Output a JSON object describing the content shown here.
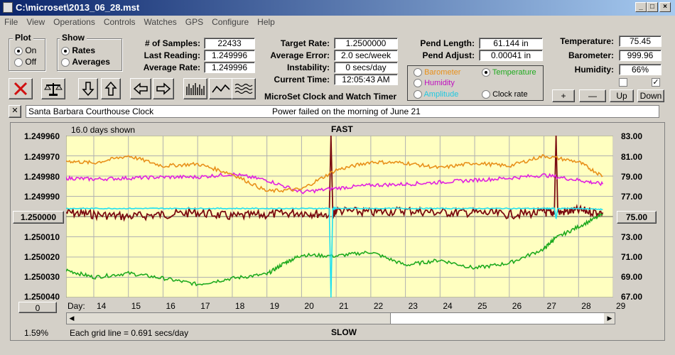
{
  "window": {
    "title": "C:\\microset\\2013_06_28.mst"
  },
  "menu": [
    "File",
    "View",
    "Operations",
    "Controls",
    "Watches",
    "GPS",
    "Configure",
    "Help"
  ],
  "plot_group": {
    "title": "Plot",
    "on": "On",
    "off": "Off"
  },
  "show_group": {
    "title": "Show",
    "rates": "Rates",
    "averages": "Averages"
  },
  "stats": {
    "samples_label": "# of Samples:",
    "samples": "22433",
    "last_label": "Last Reading:",
    "last": "1.249996",
    "avg_label": "Average Rate:",
    "avg": "1.249996",
    "target_label": "Target Rate:",
    "target": "1.2500000",
    "avgerr_label": "Average Error:",
    "avgerr": "2.0 sec/week",
    "instab_label": "Instability:",
    "instab": "0 secs/day",
    "time_label": "Current Time:",
    "time": "12:05:43 AM",
    "pendlen_label": "Pend Length:",
    "pendlen": "61.144 in",
    "pendadj_label": "Pend Adjust:",
    "pendadj": "0.00041 in",
    "temp_label": "Temperature:",
    "temp": "75.45",
    "baro_label": "Barometer:",
    "baro": "999.96",
    "hum_label": "Humidity:",
    "hum": "66%"
  },
  "series_selector": {
    "barometer": "Barometer",
    "temperature": "Temperature",
    "humidity": "Humidity",
    "amplitude": "Amplitude",
    "clockrate": "Clock rate"
  },
  "app_heading": "MicroSet Clock and Watch Timer",
  "scale_buttons": {
    "plus": "+",
    "minus": "—",
    "up": "Up",
    "down": "Down"
  },
  "notes": {
    "clock_name": "Santa Barbara Courthouse Clock",
    "message": "Power failed on the morning of June 21",
    "close": "✕"
  },
  "chart_labels": {
    "days_shown": "16.0 days shown",
    "fast": "FAST",
    "slow": "SLOW",
    "grid_note": "Each grid line = 0.691 secs/day",
    "percent": "1.59%",
    "day_label": "Day:",
    "left_btn": "1.250000",
    "right_btn": "75.00",
    "bottom_btn": "0"
  },
  "colors": {
    "plot_bg": "#ffffc0",
    "clock_rate": "#7a0a10",
    "temperature": "#1faa1f",
    "humidity": "#e020e0",
    "barometer": "#e8901a",
    "amplitude": "#20e0f0"
  },
  "chart_data": {
    "type": "line",
    "x_axis": {
      "label": "Day:",
      "ticks": [
        "14",
        "15",
        "16",
        "17",
        "18",
        "19",
        "20",
        "21",
        "22",
        "23",
        "24",
        "25",
        "26",
        "27",
        "28",
        "29"
      ],
      "range": [
        13.2,
        29
      ]
    },
    "y_left": {
      "ticks": [
        "1.249960",
        "1.249970",
        "1.249980",
        "1.249990",
        "1.250000",
        "1.250010",
        "1.250020",
        "1.250030",
        "1.250040"
      ],
      "range": [
        1.24996,
        1.25004
      ],
      "direction": "inverted"
    },
    "y_right": {
      "ticks": [
        "83.00",
        "81.00",
        "79.00",
        "77.00",
        "75.00",
        "73.00",
        "71.00",
        "69.00",
        "67.00"
      ],
      "range": [
        67,
        83
      ]
    },
    "grid": true,
    "series": [
      {
        "name": "Clock rate",
        "axis": "left",
        "color": "#7a0a10",
        "x": [
          13.2,
          14,
          15,
          16,
          17,
          18,
          19,
          20,
          20.8,
          20.85,
          20.9,
          21,
          22,
          23,
          24,
          25,
          26,
          27,
          27.3,
          27.35,
          27.4,
          28,
          28.7
        ],
        "y": [
          1.249998,
          1.249999,
          1.25,
          1.249999,
          1.249998,
          1.25,
          1.249999,
          1.249998,
          1.249999,
          1.24996,
          1.249999,
          1.249997,
          1.249998,
          1.249997,
          1.249998,
          1.249998,
          1.249999,
          1.249998,
          1.249998,
          1.24996,
          1.249998,
          1.249997,
          1.249998
        ]
      },
      {
        "name": "Temperature",
        "axis": "right",
        "color": "#1faa1f",
        "x": [
          13.2,
          14,
          15,
          16,
          17,
          18,
          19,
          19.5,
          20,
          21,
          22,
          23,
          24,
          25,
          26,
          27,
          27.3,
          28,
          28.7
        ],
        "y": [
          69.7,
          69.0,
          69.4,
          68.9,
          68.3,
          68.9,
          69.3,
          70.4,
          71.2,
          71.1,
          71.5,
          70.2,
          70.7,
          69.9,
          70.4,
          71.8,
          72.8,
          74.0,
          75.2
        ]
      },
      {
        "name": "Humidity",
        "axis": "right",
        "color": "#e020e0",
        "x": [
          13.2,
          14,
          15,
          16,
          17,
          18,
          19,
          20,
          21,
          22,
          23,
          24,
          25,
          26,
          27,
          28,
          28.7
        ],
        "y": [
          78.8,
          78.7,
          78.8,
          78.9,
          78.9,
          79.2,
          78.6,
          77.4,
          77.8,
          78.1,
          78.2,
          78.4,
          78.6,
          78.8,
          79.1,
          78.6,
          78.2
        ]
      },
      {
        "name": "Barometer",
        "axis": "right",
        "color": "#e8901a",
        "x": [
          13.2,
          14,
          15,
          16,
          17,
          18,
          19,
          20,
          21,
          22,
          23,
          24,
          25,
          26,
          27,
          28,
          28.7
        ],
        "y": [
          80.5,
          80.3,
          81.0,
          80.0,
          80.2,
          79.2,
          77.5,
          77.7,
          79.6,
          80.4,
          80.3,
          79.8,
          80.3,
          80.0,
          81.0,
          80.4,
          79.0
        ]
      },
      {
        "name": "Amplitude",
        "axis": "right",
        "color": "#20e0f0",
        "x": [
          13.2,
          14,
          15,
          16,
          17,
          18,
          19,
          20,
          20.8,
          20.85,
          20.9,
          21,
          22,
          23,
          24,
          25,
          26,
          27,
          27.3,
          27.35,
          27.4,
          28,
          28.7
        ],
        "y": [
          75.8,
          75.8,
          75.8,
          75.8,
          75.8,
          75.8,
          75.8,
          75.8,
          75.8,
          67.0,
          75.8,
          75.8,
          75.8,
          75.8,
          75.8,
          75.8,
          75.8,
          75.8,
          75.8,
          74.8,
          75.8,
          75.8,
          75.7
        ]
      }
    ]
  }
}
